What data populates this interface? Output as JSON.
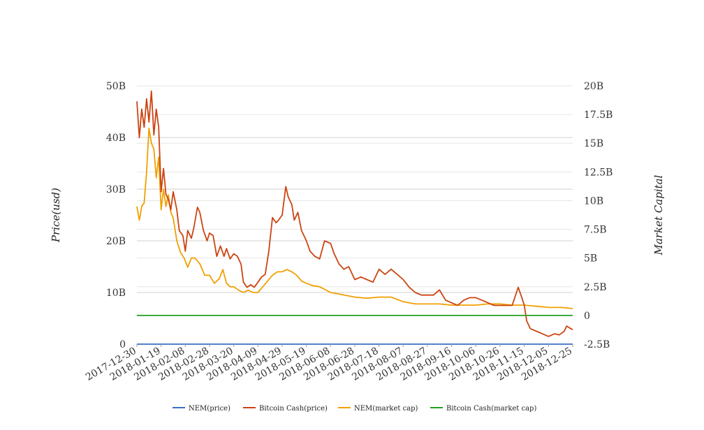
{
  "chart_data": {
    "type": "line",
    "title": "",
    "ylabel_left": "Price(usd)",
    "ylabel_right": "Market Capital",
    "x_tick_labels": [
      "2017-12-30",
      "2018-01-19",
      "2018-02-08",
      "2018-02-28",
      "2018-03-20",
      "2018-04-09",
      "2018-04-29",
      "2018-05-19",
      "2018-06-08",
      "2018-06-28",
      "2018-07-18",
      "2018-08-07",
      "2018-08-27",
      "2018-09-16",
      "2018-10-06",
      "2018-10-26",
      "2018-11-15",
      "2018-12-05",
      "2018-12-25"
    ],
    "y_left": {
      "min": 0,
      "max": 50000000000,
      "ticks": [
        0,
        10000000000,
        20000000000,
        30000000000,
        40000000000,
        50000000000
      ],
      "tick_labels": [
        "0",
        "10B",
        "20B",
        "30B",
        "40B",
        "50B"
      ]
    },
    "y_right": {
      "min": -2500000000,
      "max": 20000000000,
      "ticks": [
        -2500000000,
        0,
        2500000000,
        5000000000,
        7500000000,
        10000000000,
        12500000000,
        15000000000,
        17500000000,
        20000000000
      ],
      "tick_labels": [
        "-2.5B",
        "0",
        "2.5B",
        "5B",
        "7.5B",
        "10B",
        "12.5B",
        "15B",
        "17.5B",
        "20B"
      ]
    },
    "grid": true,
    "legend_position": "bottom",
    "series": [
      {
        "name": "NEM(price)",
        "axis": "left",
        "color": "#3a6fc4",
        "x": [
          "2017-12-30",
          "2018-12-25"
        ],
        "y": [
          0,
          0
        ]
      },
      {
        "name": "Bitcoin Cash(price)",
        "axis": "left",
        "color": "#cc4411",
        "x": [
          "2017-12-30",
          "2018-01-01",
          "2018-01-03",
          "2018-01-05",
          "2018-01-07",
          "2018-01-09",
          "2018-01-11",
          "2018-01-13",
          "2018-01-15",
          "2018-01-17",
          "2018-01-19",
          "2018-01-21",
          "2018-01-23",
          "2018-01-25",
          "2018-01-27",
          "2018-01-29",
          "2018-02-01",
          "2018-02-03",
          "2018-02-06",
          "2018-02-08",
          "2018-02-10",
          "2018-02-13",
          "2018-02-15",
          "2018-02-18",
          "2018-02-20",
          "2018-02-23",
          "2018-02-26",
          "2018-02-28",
          "2018-03-03",
          "2018-03-06",
          "2018-03-09",
          "2018-03-12",
          "2018-03-14",
          "2018-03-17",
          "2018-03-20",
          "2018-03-23",
          "2018-03-26",
          "2018-03-28",
          "2018-03-31",
          "2018-04-03",
          "2018-04-06",
          "2018-04-09",
          "2018-04-12",
          "2018-04-15",
          "2018-04-18",
          "2018-04-21",
          "2018-04-24",
          "2018-04-26",
          "2018-04-29",
          "2018-05-02",
          "2018-05-04",
          "2018-05-07",
          "2018-05-09",
          "2018-05-12",
          "2018-05-15",
          "2018-05-19",
          "2018-05-22",
          "2018-05-26",
          "2018-05-30",
          "2018-06-03",
          "2018-06-08",
          "2018-06-11",
          "2018-06-15",
          "2018-06-19",
          "2018-06-23",
          "2018-06-28",
          "2018-07-03",
          "2018-07-08",
          "2018-07-13",
          "2018-07-18",
          "2018-07-23",
          "2018-07-28",
          "2018-08-02",
          "2018-08-07",
          "2018-08-12",
          "2018-08-17",
          "2018-08-22",
          "2018-08-27",
          "2018-09-01",
          "2018-09-06",
          "2018-09-11",
          "2018-09-16",
          "2018-09-21",
          "2018-09-26",
          "2018-10-01",
          "2018-10-06",
          "2018-10-11",
          "2018-10-16",
          "2018-10-21",
          "2018-10-26",
          "2018-10-31",
          "2018-11-05",
          "2018-11-10",
          "2018-11-13",
          "2018-11-15",
          "2018-11-17",
          "2018-11-20",
          "2018-11-25",
          "2018-11-30",
          "2018-12-05",
          "2018-12-10",
          "2018-12-14",
          "2018-12-18",
          "2018-12-20",
          "2018-12-22",
          "2018-12-25"
        ],
        "y": [
          47000000000.0,
          40000000000.0,
          45500000000.0,
          42000000000.0,
          47500000000.0,
          43000000000.0,
          49000000000.0,
          40500000000.0,
          45500000000.0,
          42000000000.0,
          29500000000.0,
          34000000000.0,
          29000000000.0,
          28000000000.0,
          26000000000.0,
          29500000000.0,
          26000000000.0,
          22000000000.0,
          21000000000.0,
          18000000000.0,
          22000000000.0,
          20500000000.0,
          22500000000.0,
          26500000000.0,
          25500000000.0,
          22000000000.0,
          20000000000.0,
          21500000000.0,
          21000000000.0,
          17000000000.0,
          19000000000.0,
          17000000000.0,
          18500000000.0,
          16500000000.0,
          17500000000.0,
          17000000000.0,
          15500000000.0,
          12000000000.0,
          11000000000.0,
          11500000000.0,
          11000000000.0,
          12000000000.0,
          13000000000.0,
          13500000000.0,
          18000000000.0,
          24500000000.0,
          23500000000.0,
          24000000000.0,
          25000000000.0,
          30500000000.0,
          28500000000.0,
          27000000000.0,
          24000000000.0,
          25500000000.0,
          22000000000.0,
          20000000000.0,
          18000000000.0,
          17000000000.0,
          16500000000.0,
          20000000000.0,
          19500000000.0,
          17500000000.0,
          15500000000.0,
          14500000000.0,
          15000000000.0,
          12500000000.0,
          13000000000.0,
          12500000000.0,
          12000000000.0,
          14500000000.0,
          13500000000.0,
          14500000000.0,
          13500000000.0,
          12500000000.0,
          11000000000.0,
          10000000000.0,
          9500000000.0,
          9500000000.0,
          9500000000.0,
          10500000000.0,
          8500000000.0,
          8000000000.0,
          7500000000.0,
          8500000000.0,
          9000000000.0,
          9000000000.0,
          8500000000.0,
          8000000000.0,
          7500000000.0,
          7500000000.0,
          7500000000.0,
          7500000000.0,
          11000000000.0,
          9000000000.0,
          7500000000.0,
          4500000000.0,
          3000000000.0,
          2500000000.0,
          2000000000.0,
          1500000000.0,
          2000000000.0,
          1800000000.0,
          2500000000.0,
          3500000000.0,
          3200000000.0,
          2800000000.0
        ]
      },
      {
        "name": "NEM(market cap)",
        "axis": "right",
        "color": "#f0a000",
        "x": [
          "2017-12-30",
          "2018-01-01",
          "2018-01-03",
          "2018-01-05",
          "2018-01-07",
          "2018-01-09",
          "2018-01-11",
          "2018-01-13",
          "2018-01-15",
          "2018-01-17",
          "2018-01-19",
          "2018-01-21",
          "2018-01-23",
          "2018-01-25",
          "2018-01-27",
          "2018-01-29",
          "2018-02-01",
          "2018-02-04",
          "2018-02-07",
          "2018-02-10",
          "2018-02-13",
          "2018-02-16",
          "2018-02-20",
          "2018-02-24",
          "2018-02-28",
          "2018-03-04",
          "2018-03-08",
          "2018-03-11",
          "2018-03-14",
          "2018-03-17",
          "2018-03-20",
          "2018-03-24",
          "2018-03-28",
          "2018-04-01",
          "2018-04-05",
          "2018-04-09",
          "2018-04-13",
          "2018-04-17",
          "2018-04-21",
          "2018-04-25",
          "2018-04-29",
          "2018-05-03",
          "2018-05-07",
          "2018-05-11",
          "2018-05-15",
          "2018-05-19",
          "2018-05-24",
          "2018-05-30",
          "2018-06-08",
          "2018-06-18",
          "2018-06-28",
          "2018-07-08",
          "2018-07-18",
          "2018-07-28",
          "2018-08-07",
          "2018-08-17",
          "2018-08-27",
          "2018-09-06",
          "2018-09-16",
          "2018-09-26",
          "2018-10-06",
          "2018-10-16",
          "2018-10-26",
          "2018-11-05",
          "2018-11-15",
          "2018-11-25",
          "2018-12-05",
          "2018-12-15",
          "2018-12-25"
        ],
        "y": [
          9500000000.0,
          8300000000.0,
          9500000000.0,
          9800000000.0,
          12500000000.0,
          16300000000.0,
          15000000000.0,
          14500000000.0,
          12000000000.0,
          13800000000.0,
          9200000000.0,
          11000000000.0,
          9500000000.0,
          10500000000.0,
          9000000000.0,
          8500000000.0,
          6500000000.0,
          5500000000.0,
          5000000000.0,
          4200000000.0,
          5000000000.0,
          5000000000.0,
          4500000000.0,
          3500000000.0,
          3500000000.0,
          2800000000.0,
          3200000000.0,
          4000000000.0,
          2800000000.0,
          2500000000.0,
          2500000000.0,
          2200000000.0,
          2000000000.0,
          2200000000.0,
          2000000000.0,
          2000000000.0,
          2500000000.0,
          3000000000.0,
          3500000000.0,
          3800000000.0,
          3800000000.0,
          4000000000.0,
          3800000000.0,
          3500000000.0,
          3000000000.0,
          2800000000.0,
          2600000000.0,
          2500000000.0,
          2000000000.0,
          1800000000.0,
          1600000000.0,
          1500000000.0,
          1600000000.0,
          1600000000.0,
          1200000000.0,
          1000000000.0,
          1000000000.0,
          1000000000.0,
          900000000.0,
          900000000.0,
          900000000.0,
          1000000000.0,
          1000000000.0,
          900000000.0,
          900000000.0,
          800000000.0,
          700000000.0,
          700000000.0,
          600000000.0
        ]
      },
      {
        "name": "Bitcoin Cash(market cap)",
        "axis": "right",
        "color": "#22a020",
        "x": [
          "2017-12-30",
          "2018-12-25"
        ],
        "y": [
          0,
          0
        ]
      }
    ]
  }
}
